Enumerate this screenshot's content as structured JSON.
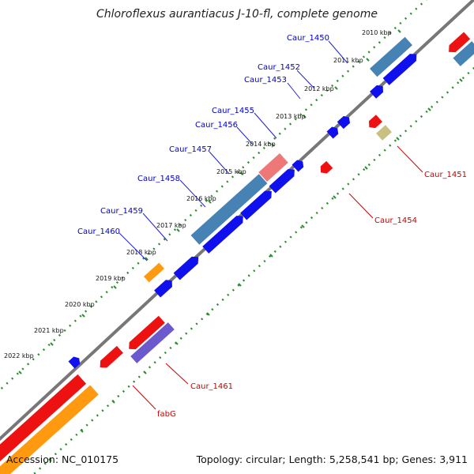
{
  "title": "Chloroflexus aurantiacus J-10-fl, complete genome",
  "footer": {
    "accession": "Accession: NC_010175",
    "stats": "Topology: circular; Length: 5,258,541 bp; Genes: 3,911"
  },
  "colors": {
    "backbone": "#777777",
    "tick_dots": "#2e8b2e",
    "plus_label": "#0000c8",
    "minus_label": "#cc0000",
    "cds_blue": "#1010ee",
    "cds_red": "#ee1111",
    "steelblue": "#4682b4",
    "orange": "#ff9a10",
    "olive": "#c8c080",
    "slate": "#6a5acd",
    "pink": "#ee7777"
  },
  "kbp_ticks": [
    "2010 kbp",
    "2011 kbp",
    "2012 kbp",
    "2013 kbp",
    "2014 kbp",
    "2015 kbp",
    "2016 kbp",
    "2017 kbp",
    "2018 kbp",
    "2019 kbp",
    "2020 kbp",
    "2021 kbp",
    "2022 kbp"
  ],
  "gene_labels_top": [
    "Caur_1450",
    "Caur_1452",
    "Caur_1453",
    "Caur_1455",
    "Caur_1456",
    "Caur_1457",
    "Caur_1458",
    "Caur_1459",
    "Caur_1460"
  ],
  "gene_labels_bottom": [
    "Caur_1451",
    "Caur_1454",
    "Caur_1461",
    "fabG"
  ]
}
